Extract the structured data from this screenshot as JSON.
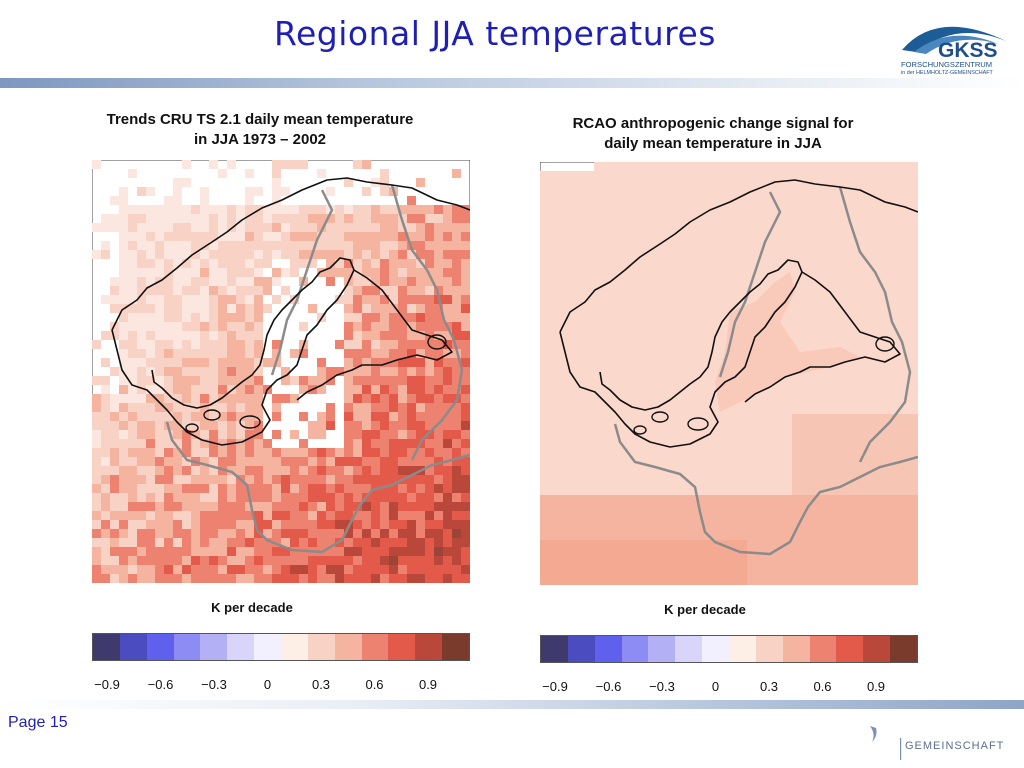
{
  "slide": {
    "title": "Regional JJA temperatures",
    "page_label": "Page 15",
    "footer_text": "GEMEINSCHAFT"
  },
  "logo": {
    "name": "GKSS",
    "line1": "FORSCHUNGSZENTRUM",
    "line2": "in der HELMHOLTZ-GEMEINSCHAFT"
  },
  "panels": [
    {
      "title_line1": "Trends CRU TS 2.1 daily mean temperature",
      "title_line2": "in JJA 1973 – 2002",
      "unit": "K per decade"
    },
    {
      "title_line1": "RCAO anthropogenic change signal for",
      "title_line2": "daily mean temperature in JJA",
      "unit": "K per decade"
    }
  ],
  "colorbar": {
    "colors": [
      "#3e3a6e",
      "#4a4cc0",
      "#6060ee",
      "#8c8cf4",
      "#b4b0f6",
      "#d8d4fa",
      "#f2f0fe",
      "#fdeee6",
      "#f9d2c6",
      "#f5b4a0",
      "#ee8270",
      "#e45a4a",
      "#b9473a",
      "#7a3a2c"
    ],
    "tick_labels": [
      "−0.9",
      "−0.6",
      "−0.3",
      "0",
      "0.3",
      "0.6",
      "0.9"
    ]
  }
}
